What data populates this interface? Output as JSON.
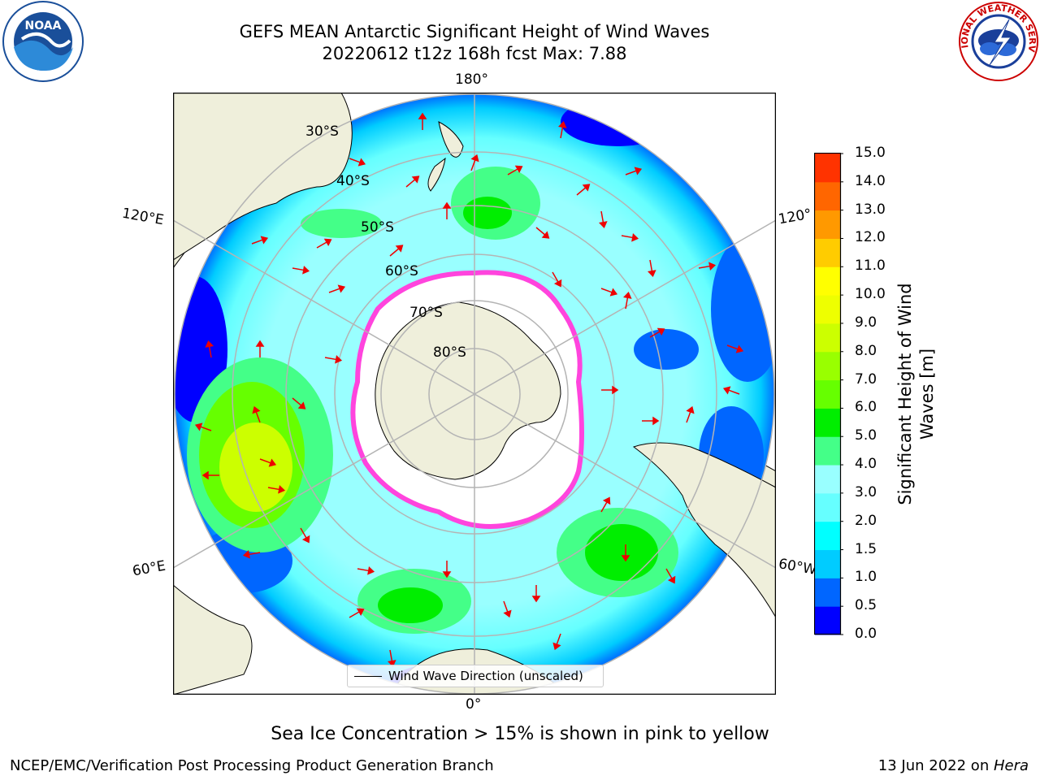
{
  "title": {
    "line1": "GEFS MEAN Antarctic Significant Height of Wind Waves",
    "line2": "20220612 t12z 168h fcst   Max: 7.88"
  },
  "logos": {
    "left": {
      "icon": "noaa-logo",
      "text": "NOAA"
    },
    "right": {
      "icon": "national-weather-service-logo",
      "text": "NATIONAL WEATHER SERVICE"
    }
  },
  "map": {
    "projection": "south-polar-stereographic",
    "longitude_labels": {
      "top": "180°",
      "bottom": "0°",
      "upper_left": "120°E",
      "lower_left": "60°E",
      "upper_right": "120°",
      "lower_right": "60°W"
    },
    "latitude_labels": [
      "30°S",
      "40°S",
      "50°S",
      "60°S",
      "70°S",
      "80°S"
    ],
    "legend_label": "Wind Wave Direction (unscaled)",
    "colors": {
      "land": "#efefdb",
      "ice_shelf": "#ffffff",
      "sea_ice_edge": "#ff44dd",
      "arrow": "#ee0000",
      "grid": "#b4b4b4"
    }
  },
  "colorbar": {
    "label": "Significant Height of Wind Waves [m]",
    "ticks": [
      "0.0",
      "0.5",
      "1.0",
      "1.5",
      "2.0",
      "3.0",
      "4.0",
      "5.0",
      "6.0",
      "7.0",
      "8.0",
      "9.0",
      "10.0",
      "11.0",
      "12.0",
      "13.0",
      "14.0",
      "15.0"
    ],
    "colors": [
      "#0000ff",
      "#0066ff",
      "#00ccff",
      "#00ffff",
      "#66ffff",
      "#99ffff",
      "#44ff88",
      "#00ee00",
      "#66ff00",
      "#99ff00",
      "#ccff00",
      "#eeff00",
      "#ffff00",
      "#ffcc00",
      "#ff9900",
      "#ff6600",
      "#ff3300",
      "#ff0000"
    ]
  },
  "note": "Sea Ice Concentration > 15% is shown in pink to yellow",
  "footer": {
    "left": "NCEP/EMC/Verification Post Processing Product Generation Branch",
    "right_date": "13 Jun 2022 on ",
    "right_host": "Hera"
  }
}
